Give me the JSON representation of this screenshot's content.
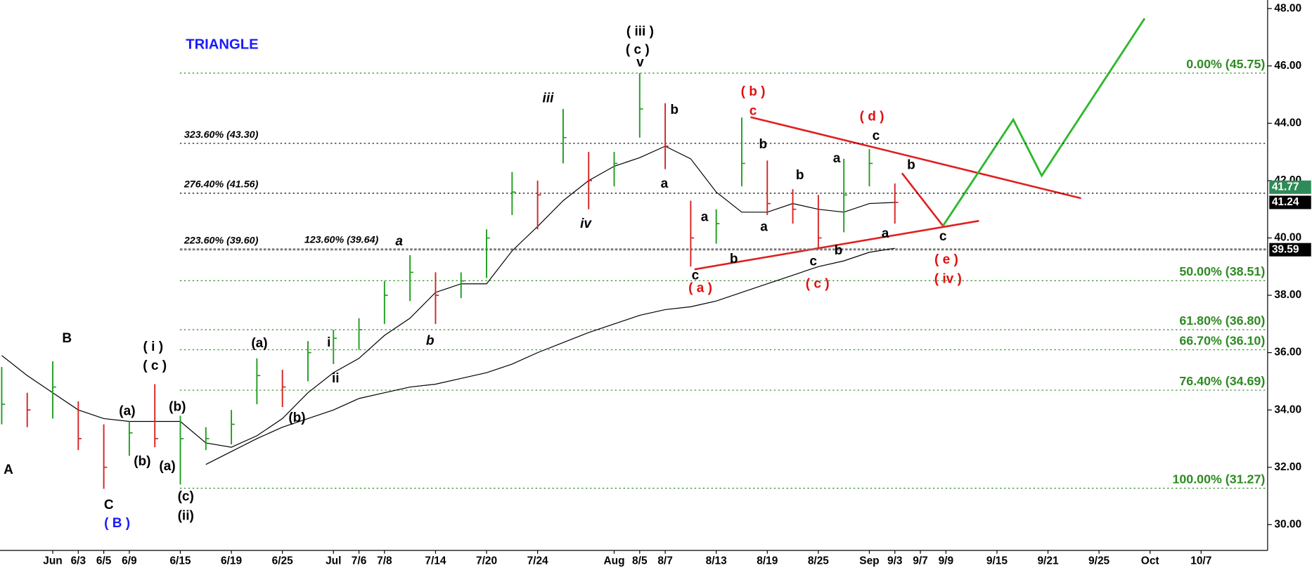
{
  "chart_data": {
    "type": "ohlc",
    "title": "TRIANGLE",
    "title_color": "#1a1aff",
    "categories": [
      null,
      null,
      "Jun",
      "6/3",
      "6/5",
      "6/9",
      null,
      "6/15",
      null,
      "6/19",
      null,
      "6/25",
      null,
      "Jul",
      "7/6",
      "7/8",
      null,
      "7/14",
      null,
      "7/20",
      null,
      "7/24",
      null,
      null,
      "Aug",
      "8/5",
      "8/7",
      null,
      "8/13",
      null,
      "8/19",
      null,
      "8/25",
      null,
      "Sep",
      "9/3",
      "9/7",
      "9/9",
      null,
      "9/15",
      null,
      "9/21",
      null,
      "9/25",
      null,
      "Oct",
      null,
      "10/7",
      null,
      null
    ],
    "high": [
      35.5,
      34.6,
      35.7,
      34.3,
      33.5,
      33.6,
      34.9,
      33.8,
      33.4,
      34.0,
      35.8,
      35.4,
      36.4,
      36.8,
      37.2,
      38.5,
      39.4,
      38.8,
      38.8,
      40.3,
      42.3,
      42.0,
      44.5,
      43.0,
      43.0,
      45.75,
      44.7,
      41.3,
      41.0,
      44.2,
      42.7,
      41.7,
      41.5,
      42.76,
      43.1,
      41.9,
      null,
      null,
      null,
      null,
      null,
      null,
      null,
      null,
      null,
      null,
      null,
      null,
      null,
      null
    ],
    "low": [
      33.5,
      33.4,
      33.7,
      32.6,
      31.25,
      32.4,
      32.7,
      31.4,
      32.6,
      32.8,
      34.2,
      34.1,
      35.0,
      35.6,
      36.1,
      37.0,
      37.8,
      37.0,
      37.9,
      38.6,
      40.8,
      40.3,
      42.6,
      41.0,
      41.8,
      43.5,
      42.4,
      39.0,
      39.8,
      41.8,
      40.8,
      40.5,
      39.6,
      40.2,
      41.8,
      40.5,
      null,
      null,
      null,
      null,
      null,
      null,
      null,
      null,
      null,
      null,
      null,
      null,
      null,
      null
    ],
    "close": [
      34.2,
      34.0,
      34.8,
      33.0,
      32.0,
      33.2,
      33.0,
      33.0,
      33.0,
      33.5,
      35.2,
      34.8,
      36.0,
      36.5,
      36.8,
      38.0,
      38.8,
      38.0,
      38.5,
      40.0,
      41.6,
      41.5,
      43.5,
      42.0,
      42.6,
      44.5,
      43.2,
      40.0,
      40.5,
      42.6,
      41.2,
      41.0,
      40.0,
      41.5,
      42.6,
      41.24,
      null,
      null,
      null,
      null,
      null,
      null,
      null,
      null,
      null,
      null,
      null,
      null,
      null,
      null
    ],
    "up_color": "#1f9e1f",
    "down_color": "#d62222",
    "ma_short": [
      35.9,
      35.2,
      34.6,
      34.0,
      33.7,
      33.6,
      33.6,
      33.6,
      32.85,
      32.7,
      33.1,
      33.7,
      34.6,
      35.3,
      35.8,
      36.6,
      37.2,
      38.1,
      38.4,
      38.4,
      39.55,
      40.4,
      41.3,
      42.0,
      42.5,
      42.8,
      43.2,
      42.76,
      41.6,
      40.9,
      40.9,
      41.2,
      41.0,
      40.9,
      41.2,
      41.24,
      null,
      null,
      null,
      null,
      null,
      null,
      null,
      null,
      null,
      null,
      null,
      null,
      null,
      null
    ],
    "ma_long": [
      null,
      null,
      null,
      null,
      null,
      null,
      null,
      null,
      32.1,
      32.55,
      33.0,
      33.4,
      33.7,
      34.0,
      34.4,
      34.6,
      34.8,
      34.9,
      35.1,
      35.3,
      35.6,
      36.0,
      36.35,
      36.7,
      37.0,
      37.3,
      37.5,
      37.6,
      37.8,
      38.1,
      38.4,
      38.7,
      39.0,
      39.2,
      39.5,
      39.64,
      null,
      null,
      null,
      null,
      null,
      null,
      null,
      null,
      null,
      null,
      null,
      null,
      null,
      null
    ],
    "ma_color": "#000000",
    "ylim": [
      29.1,
      48.3
    ],
    "yticks": [
      {
        "value": 30,
        "label": "30.00"
      },
      {
        "value": 32,
        "label": "32.00"
      },
      {
        "value": 34,
        "label": "34.00"
      },
      {
        "value": 36,
        "label": "36.00"
      },
      {
        "value": 38,
        "label": "38.00"
      },
      {
        "value": 40,
        "label": "40.00"
      },
      {
        "value": 42,
        "label": "42.00"
      },
      {
        "value": 44,
        "label": "44.00"
      },
      {
        "value": 46,
        "label": "46.00"
      },
      {
        "value": 48,
        "label": "48.00"
      }
    ],
    "fib_right": [
      {
        "label": "0.00% (45.75)",
        "value": 45.75
      },
      {
        "label": "50.00% (38.51)",
        "value": 38.51
      },
      {
        "label": "61.80% (36.80)",
        "value": 36.8
      },
      {
        "label": "66.70% (36.10)",
        "value": 36.1
      },
      {
        "label": "76.40% (34.69)",
        "value": 34.69
      },
      {
        "label": "100.00% (31.27)",
        "value": 31.27
      }
    ],
    "fib_right_color": "#2e8b22",
    "fib_left": [
      {
        "label": "323.60% (43.30)",
        "value": 43.3
      },
      {
        "label": "276.40% (41.56)",
        "value": 41.56
      },
      {
        "label": "223.60% (39.60)",
        "value": 39.6
      }
    ],
    "price_markers": [
      {
        "value": 41.77,
        "color": "#2e8b57"
      },
      {
        "value": 41.24,
        "color": "#000000"
      },
      {
        "value": 39.59,
        "color": "#000000"
      }
    ],
    "annotations": [
      {
        "text": "A",
        "color": "#000000"
      },
      {
        "text": "B",
        "color": "#000000"
      },
      {
        "text": "C",
        "color": "#000000"
      },
      {
        "text": "( B )",
        "color": "#1a1aff"
      },
      {
        "text": "( i )",
        "color": "#000000"
      },
      {
        "text": "( c )",
        "color": "#000000"
      },
      {
        "text": "(a)",
        "color": "#000000"
      },
      {
        "text": "(b)",
        "color": "#000000"
      },
      {
        "text": "(a)",
        "color": "#000000"
      },
      {
        "text": "(b)",
        "color": "#000000"
      },
      {
        "text": "(c)",
        "color": "#000000"
      },
      {
        "text": "(ii)",
        "color": "#000000"
      },
      {
        "text": "(a)",
        "color": "#000000"
      },
      {
        "text": "(b)",
        "color": "#000000"
      },
      {
        "text": "i",
        "color": "#000000"
      },
      {
        "text": "ii",
        "color": "#000000"
      },
      {
        "text": "a",
        "color": "#000000"
      },
      {
        "text": "b",
        "color": "#000000"
      },
      {
        "text": "iii",
        "color": "#000000"
      },
      {
        "text": "iv",
        "color": "#000000"
      },
      {
        "text": "( iii )",
        "color": "#000000"
      },
      {
        "text": "( c )",
        "color": "#000000"
      },
      {
        "text": "v",
        "color": "#000000"
      },
      {
        "text": "b",
        "color": "#000000"
      },
      {
        "text": "a",
        "color": "#000000"
      },
      {
        "text": "c",
        "color": "#000000"
      },
      {
        "text": "( a )",
        "color": "#e01010"
      },
      {
        "text": "a",
        "color": "#000000"
      },
      {
        "text": "b",
        "color": "#000000"
      },
      {
        "text": "( b )",
        "color": "#e01010"
      },
      {
        "text": "c",
        "color": "#e01010"
      },
      {
        "text": "b",
        "color": "#000000"
      },
      {
        "text": "a",
        "color": "#000000"
      },
      {
        "text": "b",
        "color": "#000000"
      },
      {
        "text": "c",
        "color": "#000000"
      },
      {
        "text": "( c )",
        "color": "#e01010"
      },
      {
        "text": "b",
        "color": "#000000"
      },
      {
        "text": "a",
        "color": "#000000"
      },
      {
        "text": "( d )",
        "color": "#e01010"
      },
      {
        "text": "c",
        "color": "#000000"
      },
      {
        "text": "b",
        "color": "#000000"
      },
      {
        "text": "a",
        "color": "#000000"
      },
      {
        "text": "c",
        "color": "#000000"
      },
      {
        "text": "( e )",
        "color": "#e01010"
      },
      {
        "text": "( iv )",
        "color": "#e01010"
      },
      {
        "text": "123.60% (39.64)",
        "color": "#000000"
      }
    ]
  }
}
